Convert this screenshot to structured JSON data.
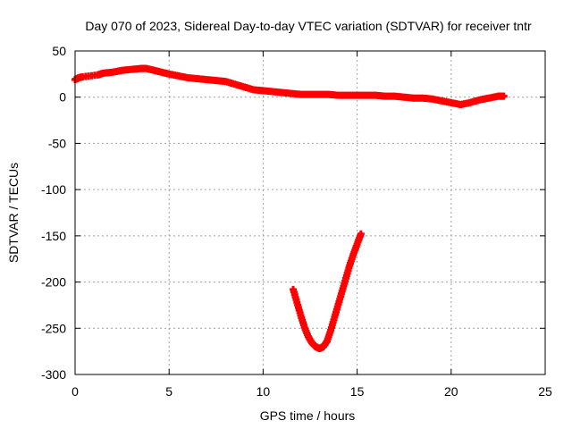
{
  "chart_data": {
    "type": "scatter",
    "title": "Day 070 of 2023, Sidereal Day-to-day VTEC variation (SDTVAR) for receiver tntr",
    "xlabel": "GPS time / hours",
    "ylabel": "SDTVAR / TECUs",
    "xlim": [
      0,
      25
    ],
    "ylim": [
      -300,
      50
    ],
    "x_ticks": [
      0,
      5,
      10,
      15,
      20,
      25
    ],
    "y_ticks": [
      50,
      0,
      -50,
      -100,
      -150,
      -200,
      -250,
      -300
    ],
    "grid": true,
    "legend": "none",
    "marker": "plus",
    "series_color": "#ff0000",
    "series": [
      {
        "points": [
          [
            0.0,
            19
          ],
          [
            0.2,
            21
          ],
          [
            0.4,
            22
          ],
          [
            1.2,
            24
          ],
          [
            1.5,
            26
          ],
          [
            2.0,
            27
          ],
          [
            2.5,
            29
          ],
          [
            3.0,
            30
          ],
          [
            3.5,
            31
          ],
          [
            3.8,
            31
          ],
          [
            4.2,
            29
          ],
          [
            4.6,
            27
          ],
          [
            5.0,
            25
          ],
          [
            5.5,
            23
          ],
          [
            6.0,
            21
          ],
          [
            6.5,
            20
          ],
          [
            7.0,
            19
          ],
          [
            7.5,
            18
          ],
          [
            8.0,
            17
          ],
          [
            8.5,
            14
          ],
          [
            9.0,
            11
          ],
          [
            9.5,
            8
          ],
          [
            10.0,
            7
          ],
          [
            10.5,
            6
          ],
          [
            11.0,
            5
          ],
          [
            11.5,
            4
          ],
          [
            12.0,
            3
          ],
          [
            12.5,
            3
          ],
          [
            13.0,
            3
          ],
          [
            13.5,
            3
          ],
          [
            14.0,
            2
          ],
          [
            14.5,
            2
          ],
          [
            15.0,
            2
          ],
          [
            15.5,
            2
          ],
          [
            16.0,
            2
          ],
          [
            16.5,
            1
          ],
          [
            17.0,
            1
          ],
          [
            17.5,
            0
          ],
          [
            18.0,
            -1
          ],
          [
            18.5,
            -1
          ],
          [
            19.0,
            -2
          ],
          [
            19.5,
            -4
          ],
          [
            20.0,
            -6
          ],
          [
            20.5,
            -8
          ],
          [
            21.0,
            -6
          ],
          [
            21.5,
            -3
          ],
          [
            22.0,
            -1
          ],
          [
            22.5,
            1
          ],
          [
            22.8,
            1
          ],
          [
            11.6,
            -208
          ],
          [
            11.8,
            -222
          ],
          [
            12.0,
            -236
          ],
          [
            12.2,
            -249
          ],
          [
            12.4,
            -259
          ],
          [
            12.6,
            -266
          ],
          [
            12.8,
            -270
          ],
          [
            13.0,
            -272
          ],
          [
            13.2,
            -270
          ],
          [
            13.4,
            -264
          ],
          [
            13.6,
            -252
          ],
          [
            13.8,
            -238
          ],
          [
            14.0,
            -224
          ],
          [
            14.2,
            -210
          ],
          [
            14.4,
            -196
          ],
          [
            14.6,
            -182
          ],
          [
            14.8,
            -170
          ],
          [
            15.0,
            -159
          ],
          [
            15.2,
            -148
          ]
        ]
      }
    ]
  }
}
